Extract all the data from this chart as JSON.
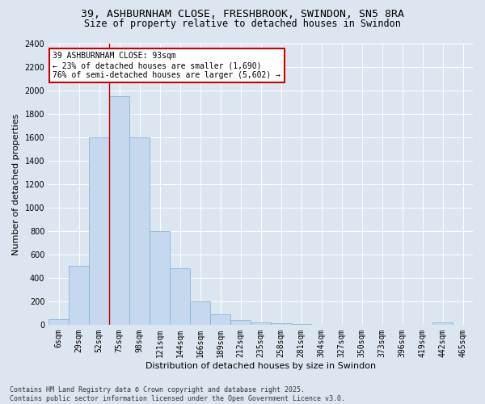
{
  "title_line1": "39, ASHBURNHAM CLOSE, FRESHBROOK, SWINDON, SN5 8RA",
  "title_line2": "Size of property relative to detached houses in Swindon",
  "xlabel": "Distribution of detached houses by size in Swindon",
  "ylabel": "Number of detached properties",
  "bar_color": "#c5d8ed",
  "bar_edge_color": "#7aafd4",
  "background_color": "#dce6f0",
  "grid_color": "#ffffff",
  "bin_labels": [
    "6sqm",
    "29sqm",
    "52sqm",
    "75sqm",
    "98sqm",
    "121sqm",
    "144sqm",
    "166sqm",
    "189sqm",
    "212sqm",
    "235sqm",
    "258sqm",
    "281sqm",
    "304sqm",
    "327sqm",
    "350sqm",
    "373sqm",
    "396sqm",
    "419sqm",
    "442sqm",
    "465sqm"
  ],
  "bar_heights": [
    50,
    500,
    1600,
    1950,
    1600,
    800,
    480,
    200,
    90,
    40,
    20,
    10,
    5,
    0,
    0,
    0,
    0,
    0,
    0,
    20,
    0
  ],
  "ylim": [
    0,
    2400
  ],
  "yticks": [
    0,
    200,
    400,
    600,
    800,
    1000,
    1200,
    1400,
    1600,
    1800,
    2000,
    2200,
    2400
  ],
  "property_line_x": 3.0,
  "property_line_color": "#cc0000",
  "annotation_text": "39 ASHBURNHAM CLOSE: 93sqm\n← 23% of detached houses are smaller (1,690)\n76% of semi-detached houses are larger (5,602) →",
  "annotation_box_color": "#ffffff",
  "annotation_box_edge": "#cc0000",
  "footer_text": "Contains HM Land Registry data © Crown copyright and database right 2025.\nContains public sector information licensed under the Open Government Licence v3.0.",
  "title_fontsize": 9.5,
  "subtitle_fontsize": 8.5,
  "axis_label_fontsize": 8,
  "tick_fontsize": 7,
  "annotation_fontsize": 7,
  "footer_fontsize": 6
}
